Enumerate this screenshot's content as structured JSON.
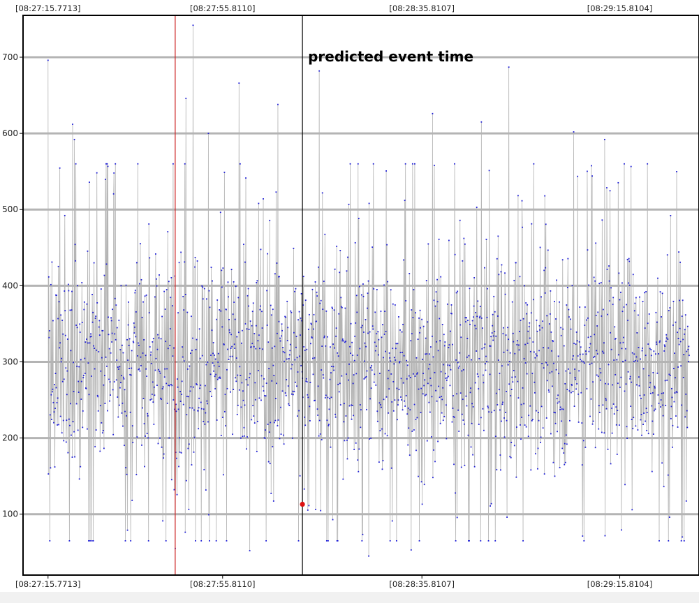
{
  "chart_data": {
    "type": "scatter",
    "connected": true,
    "grid": true,
    "ylim": [
      20,
      755
    ],
    "y_ticks": [
      100,
      200,
      300,
      400,
      500,
      600,
      700
    ],
    "x_tick_labels": [
      "[08:27:15.7713]",
      "[08:27:55.8110]",
      "[08:28:35.8107]",
      "[08:29:15.8104]"
    ],
    "x_tick_positions": [
      0.0,
      0.2655,
      0.5686,
      0.8695
    ],
    "x_range": [
      -0.038,
      0.99
    ],
    "annotations": [
      {
        "type": "vline",
        "x": 0.1934,
        "color": "#cc2222"
      },
      {
        "type": "vline",
        "x": 0.3869,
        "color": "#000000",
        "label": "predicted event time"
      },
      {
        "type": "point",
        "x": 0.3869,
        "y": 113,
        "color": "#dd1111"
      }
    ],
    "series": [
      {
        "color": "#1f1fd6",
        "line_color": "#b4b4b4",
        "n_points": 1800,
        "mean": 300,
        "typical_range": [
          100,
          500
        ],
        "min": 45,
        "max": 742,
        "x_start": 0.0,
        "x_end": 0.975
      }
    ],
    "peaks": [
      {
        "x": 0.0,
        "y": 696
      },
      {
        "x": 0.0375,
        "y": 612
      },
      {
        "x": 0.04,
        "y": 592
      },
      {
        "x": 0.2205,
        "y": 742
      },
      {
        "x": 0.2098,
        "y": 646
      },
      {
        "x": 0.2441,
        "y": 600
      },
      {
        "x": 0.2903,
        "y": 666
      },
      {
        "x": 0.3493,
        "y": 638
      },
      {
        "x": 0.4126,
        "y": 682
      },
      {
        "x": 0.5848,
        "y": 626
      },
      {
        "x": 0.6588,
        "y": 615
      },
      {
        "x": 0.7006,
        "y": 687
      },
      {
        "x": 0.7992,
        "y": 602
      },
      {
        "x": 0.8466,
        "y": 592
      }
    ],
    "troughs": [
      {
        "x": 0.3069,
        "y": 52
      },
      {
        "x": 0.4879,
        "y": 45
      },
      {
        "x": 0.5525,
        "y": 53
      },
      {
        "x": 0.0686,
        "y": 65
      },
      {
        "x": 0.1934,
        "y": 55
      },
      {
        "x": 0.9646,
        "y": 70
      }
    ]
  }
}
